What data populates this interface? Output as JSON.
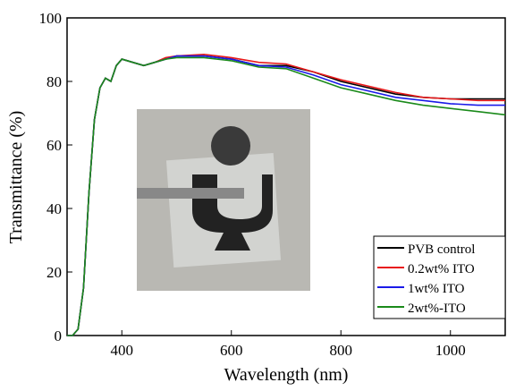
{
  "chart_data": {
    "type": "line",
    "x_label": "Wavelength (nm)",
    "y_label": "Transmittance (%)",
    "x": [
      300,
      310,
      320,
      330,
      340,
      350,
      360,
      370,
      380,
      390,
      400,
      420,
      440,
      460,
      480,
      500,
      550,
      600,
      650,
      700,
      750,
      800,
      850,
      900,
      950,
      1000,
      1050,
      1100
    ],
    "series": [
      {
        "name": "PVB control",
        "color": "#000000",
        "values": [
          0,
          0,
          2,
          15,
          45,
          68,
          78,
          81,
          80,
          85,
          87,
          86,
          85,
          86,
          87,
          88,
          88,
          87,
          85,
          85,
          83,
          80,
          78,
          76,
          75,
          74.5,
          74.5,
          74.5
        ]
      },
      {
        "name": "0.2wt% ITO",
        "color": "#e8191a",
        "values": [
          0,
          0,
          2,
          15,
          45,
          68,
          78,
          81,
          80,
          85,
          87,
          86,
          85,
          86,
          87.5,
          88,
          88.5,
          87.5,
          86,
          85.5,
          83,
          80.5,
          78.5,
          76.5,
          75,
          74.5,
          74,
          74
        ]
      },
      {
        "name": "1wt% ITO",
        "color": "#1a1ae8",
        "values": [
          0,
          0,
          2,
          15,
          45,
          68,
          78,
          81,
          80,
          85,
          87,
          86,
          85,
          86,
          87,
          88,
          88,
          87,
          85,
          84.5,
          82,
          79,
          77,
          75,
          74,
          73,
          72.5,
          72.5
        ]
      },
      {
        "name": "2wt%-ITO",
        "color": "#1a8a1a",
        "values": [
          0,
          0,
          2,
          15,
          45,
          68,
          78,
          81,
          80,
          85,
          87,
          86,
          85,
          86,
          87,
          87.5,
          87.5,
          86.5,
          84.5,
          84,
          81,
          78,
          76,
          74,
          72.5,
          71.5,
          70.5,
          69.5
        ]
      }
    ],
    "xlim": [
      300,
      1100
    ],
    "ylim": [
      0,
      100
    ],
    "xticks": [
      400,
      600,
      800,
      1000
    ],
    "yticks": [
      0,
      20,
      40,
      60,
      80,
      100
    ],
    "legend": "lower right"
  }
}
